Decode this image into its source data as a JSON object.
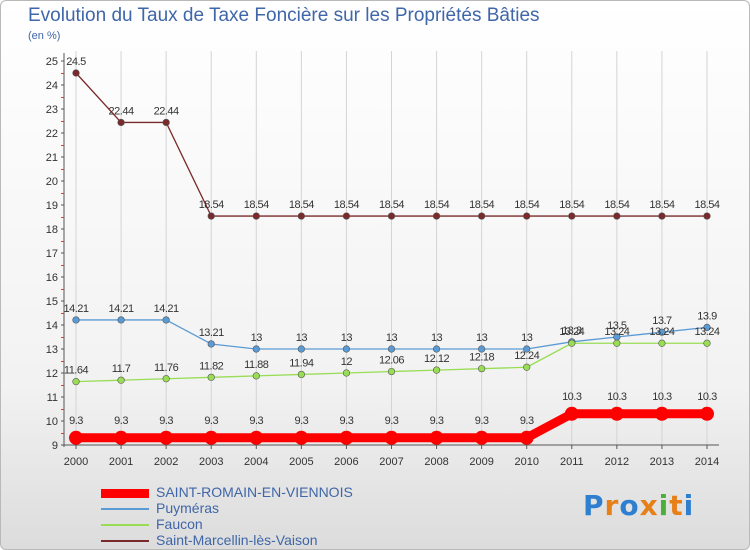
{
  "title": "Evolution du Taux de Taxe Foncière sur les Propriétés Bâties",
  "unit_label": "(en %)",
  "logo": {
    "text": "Proxiti",
    "colors": [
      "#2f7fd0",
      "#e8801a",
      "#2f7fd0",
      "#e8801a",
      "#4caf3a",
      "#e8801a",
      "#2f7fd0"
    ]
  },
  "chart_data": {
    "type": "line",
    "title": "Evolution du Taux de Taxe Foncière sur les Propriétés Bâties",
    "ylabel": "(en %)",
    "xlabel": "",
    "ylim": [
      9,
      25
    ],
    "yticks": [
      9,
      10,
      11,
      12,
      13,
      14,
      15,
      16,
      17,
      18,
      19,
      20,
      21,
      22,
      23,
      24,
      25
    ],
    "categories": [
      "2000",
      "2001",
      "2002",
      "2003",
      "2004",
      "2005",
      "2006",
      "2007",
      "2008",
      "2009",
      "2010",
      "2011",
      "2012",
      "2013",
      "2014"
    ],
    "series": [
      {
        "name": "SAINT-ROMAIN-EN-VIENNOIS",
        "color": "#ff0000",
        "bold": true,
        "values": [
          9.3,
          9.3,
          9.3,
          9.3,
          9.3,
          9.3,
          9.3,
          9.3,
          9.3,
          9.3,
          9.3,
          10.3,
          10.3,
          10.3,
          10.3
        ],
        "labels": [
          "9.3",
          "9.3",
          "9.3",
          "9.3",
          "9.3",
          "9.3",
          "9.3",
          "9.3",
          "9.3",
          "9.3",
          "9.3",
          "10.3",
          "10.3",
          "10.3",
          "10.3"
        ]
      },
      {
        "name": "Puyméras",
        "color": "#5a9bd5",
        "bold": false,
        "values": [
          14.21,
          14.21,
          14.21,
          13.21,
          13,
          13,
          13,
          13,
          13,
          13,
          13,
          13.3,
          13.5,
          13.7,
          13.9
        ],
        "labels": [
          "14.21",
          "14.21",
          "14.21",
          "13.21",
          "13",
          "13",
          "13",
          "13",
          "13",
          "13",
          "13",
          "13.3",
          "13.5",
          "13.7",
          "13.9"
        ]
      },
      {
        "name": "Faucon",
        "color": "#99dd55",
        "bold": false,
        "values": [
          11.64,
          11.7,
          11.76,
          11.82,
          11.88,
          11.94,
          12,
          12.06,
          12.12,
          12.18,
          12.24,
          13.24,
          13.24,
          13.24,
          13.24
        ],
        "labels": [
          "11.64",
          "11.7",
          "11.76",
          "11.82",
          "11.88",
          "11.94",
          "12",
          "12.06",
          "12.12",
          "12.18",
          "12.24",
          "13.24",
          "13.24",
          "13.24",
          "13.24"
        ]
      },
      {
        "name": "Saint-Marcellin-lès-Vaison",
        "color": "#7a2a2a",
        "bold": false,
        "values": [
          24.5,
          22.44,
          22.44,
          18.54,
          18.54,
          18.54,
          18.54,
          18.54,
          18.54,
          18.54,
          18.54,
          18.54,
          18.54,
          18.54,
          18.54
        ],
        "labels": [
          "24.5",
          "22.44",
          "22.44",
          "18.54",
          "18.54",
          "18.54",
          "18.54",
          "18.54",
          "18.54",
          "18.54",
          "18.54",
          "18.54",
          "18.54",
          "18.54",
          "18.54"
        ]
      }
    ]
  }
}
